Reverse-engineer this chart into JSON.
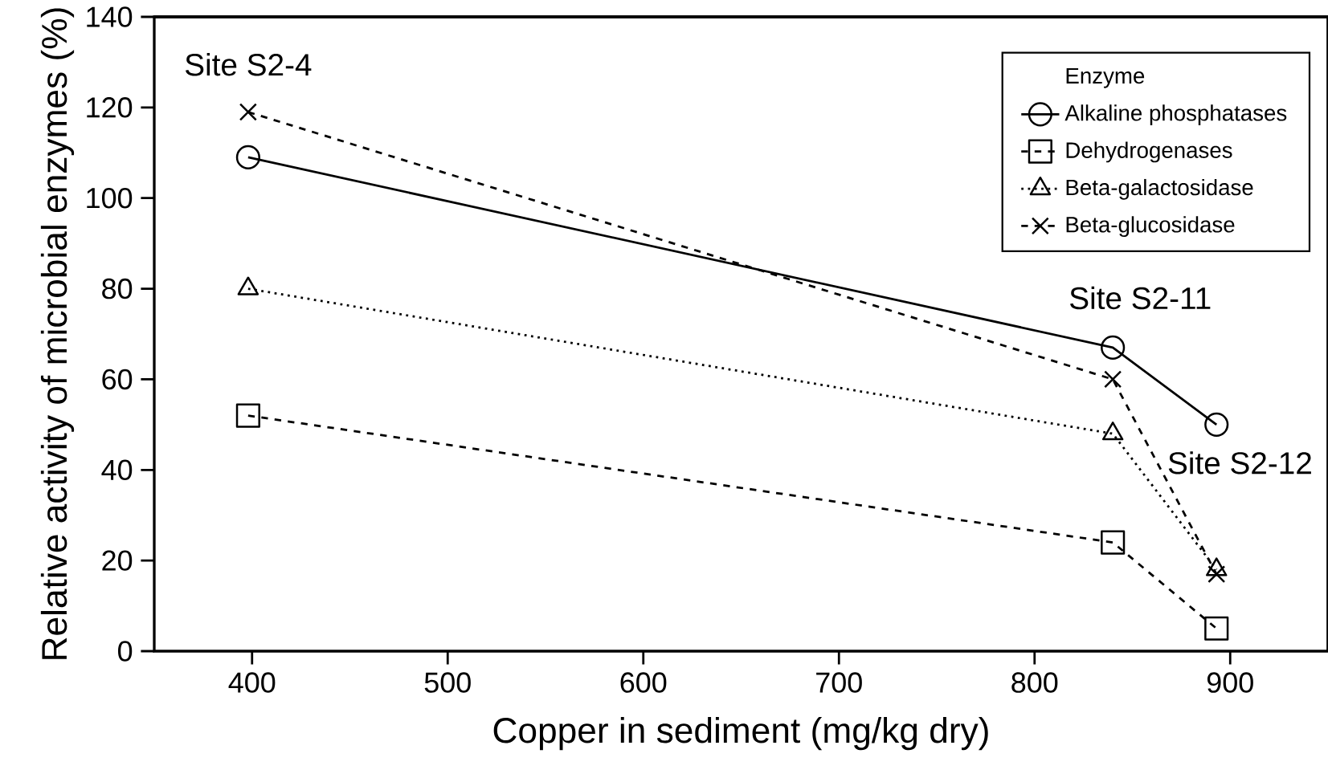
{
  "chart_data": {
    "type": "line",
    "xlabel": "Copper in sediment (mg/kg dry)",
    "ylabel": "Relative activity of microbial enzymes (%)",
    "legend_title": "Enzyme",
    "x": [
      398,
      840,
      893
    ],
    "series": [
      {
        "name": "Alkaline phosphatases",
        "color": "#000000",
        "values": [
          109,
          67,
          50
        ],
        "marker": "circle",
        "line_style": "solid"
      },
      {
        "name": "Dehydrogenases",
        "color": "#000000",
        "values": [
          52,
          24,
          5
        ],
        "marker": "square",
        "line_style": "dashed"
      },
      {
        "name": "Beta-galactosidase",
        "color": "#000000",
        "values": [
          80,
          48,
          18
        ],
        "marker": "triangle",
        "line_style": "dotted"
      },
      {
        "name": "Beta-glucosidase",
        "color": "#000000",
        "values": [
          119,
          60,
          17
        ],
        "marker": "cross",
        "line_style": "dashed"
      }
    ],
    "annotations": [
      "Site S2-4",
      "Site S2-11",
      "Site S2-12"
    ],
    "xlim": [
      350,
      950
    ],
    "ylim": [
      0,
      140
    ],
    "xticks": [
      400,
      500,
      600,
      700,
      800,
      900
    ],
    "yticks": [
      0,
      20,
      40,
      60,
      80,
      100,
      120,
      140
    ],
    "grid": false,
    "legend": "top right"
  }
}
